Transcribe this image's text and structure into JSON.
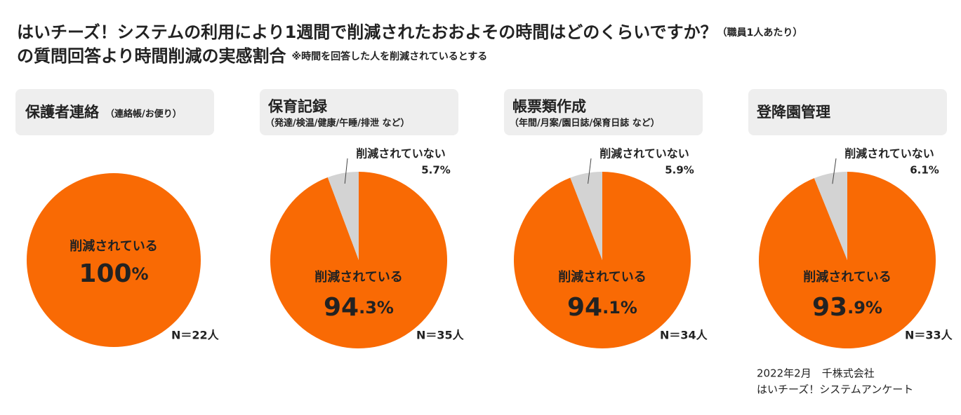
{
  "header": {
    "title": "はいチーズ！システムの利用により1週間で削減されたおおよその時間はどのくらいですか？",
    "title_note": "（職員1人あたり）",
    "subtitle": "の質問回答より時間削減の実感割合",
    "subtitle_note": "※時間を回答した人を削減されているとする"
  },
  "chart_data": [
    {
      "type": "pie",
      "title": "保護者連絡",
      "subtitle": "（連絡帳/お便り）",
      "categories": [
        "削減されている"
      ],
      "values": [
        100
      ],
      "value_labels": [
        "100%"
      ],
      "colors": [
        "#f96a04"
      ],
      "n_label": "N＝22人"
    },
    {
      "type": "pie",
      "title": "保育記録",
      "subtitle": "（発達/検温/健康/午睡/排泄 など）",
      "categories": [
        "削減されている",
        "削減されていない"
      ],
      "values": [
        94.3,
        5.7
      ],
      "value_labels": [
        "94.3%",
        "5.7%"
      ],
      "colors": [
        "#f96a04",
        "#d3d3d3"
      ],
      "n_label": "N＝35人"
    },
    {
      "type": "pie",
      "title": "帳票類作成",
      "subtitle": "（年間/月案/園日誌/保育日誌 など）",
      "categories": [
        "削減されている",
        "削減されていない"
      ],
      "values": [
        94.1,
        5.9
      ],
      "value_labels": [
        "94.1%",
        "5.9%"
      ],
      "colors": [
        "#f96a04",
        "#d3d3d3"
      ],
      "n_label": "N＝34人"
    },
    {
      "type": "pie",
      "title": "登降園管理",
      "categories": [
        "削減されている",
        "削減されていない"
      ],
      "values": [
        93.9,
        6.1
      ],
      "value_labels": [
        "93.9%",
        "6.1%"
      ],
      "colors": [
        "#f96a04",
        "#d3d3d3"
      ],
      "n_label": "N＝33人"
    }
  ],
  "source": [
    "2022年2月　千株式会社",
    "はいチーズ！システムアンケート"
  ]
}
